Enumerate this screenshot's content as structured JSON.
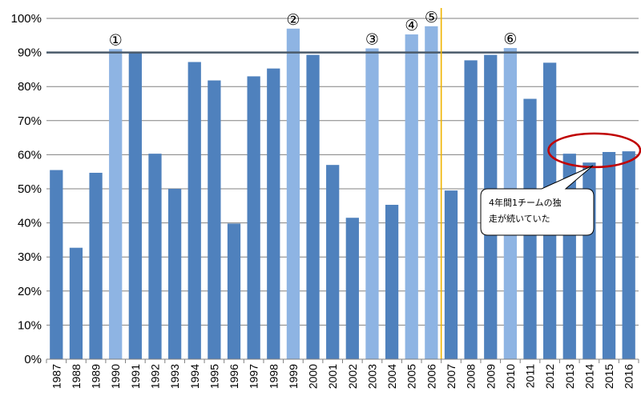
{
  "chart_data": {
    "type": "bar",
    "title": "",
    "xlabel": "",
    "ylabel": "",
    "ylim": [
      0,
      100
    ],
    "ytick_step": 10,
    "ytick_suffix": "%",
    "reference_line": 90,
    "divider_between": [
      "2006",
      "2007"
    ],
    "categories": [
      "1987",
      "1988",
      "1989",
      "1990",
      "1991",
      "1992",
      "1993",
      "1994",
      "1995",
      "1996",
      "1997",
      "1998",
      "1999",
      "2000",
      "2001",
      "2002",
      "2003",
      "2004",
      "2005",
      "2006",
      "2007",
      "2008",
      "2009",
      "2010",
      "2011",
      "2012",
      "2013",
      "2014",
      "2015",
      "2016"
    ],
    "values": [
      55.5,
      32.7,
      54.7,
      91,
      90,
      60.3,
      50,
      87.2,
      81.8,
      39.8,
      83,
      85.3,
      97,
      89.3,
      57,
      41.5,
      91.2,
      45.3,
      95.3,
      97.7,
      49.5,
      87.7,
      89.3,
      91.3,
      76.4,
      87,
      60.3,
      57.7,
      60.8,
      61
    ],
    "highlighted": [
      "1990",
      "1999",
      "2003",
      "2005",
      "2006",
      "2010"
    ],
    "annotations": [
      {
        "category": "1990",
        "label": "①"
      },
      {
        "category": "1999",
        "label": "②"
      },
      {
        "category": "2003",
        "label": "③"
      },
      {
        "category": "2005",
        "label": "④"
      },
      {
        "category": "2006",
        "label": "⑤"
      },
      {
        "category": "2010",
        "label": "⑥"
      }
    ],
    "callout": {
      "lines": [
        "4年間1チームの独",
        "走が続いていた"
      ],
      "target_categories": [
        "2013",
        "2014",
        "2015",
        "2016"
      ]
    },
    "colors": {
      "bar": "#4f81bd",
      "bar_highlight": "#8eb4e3",
      "grid": "#808080",
      "reference_line": "#4a5a6a",
      "divider": "#f0b400",
      "ellipse": "#c00000"
    }
  }
}
